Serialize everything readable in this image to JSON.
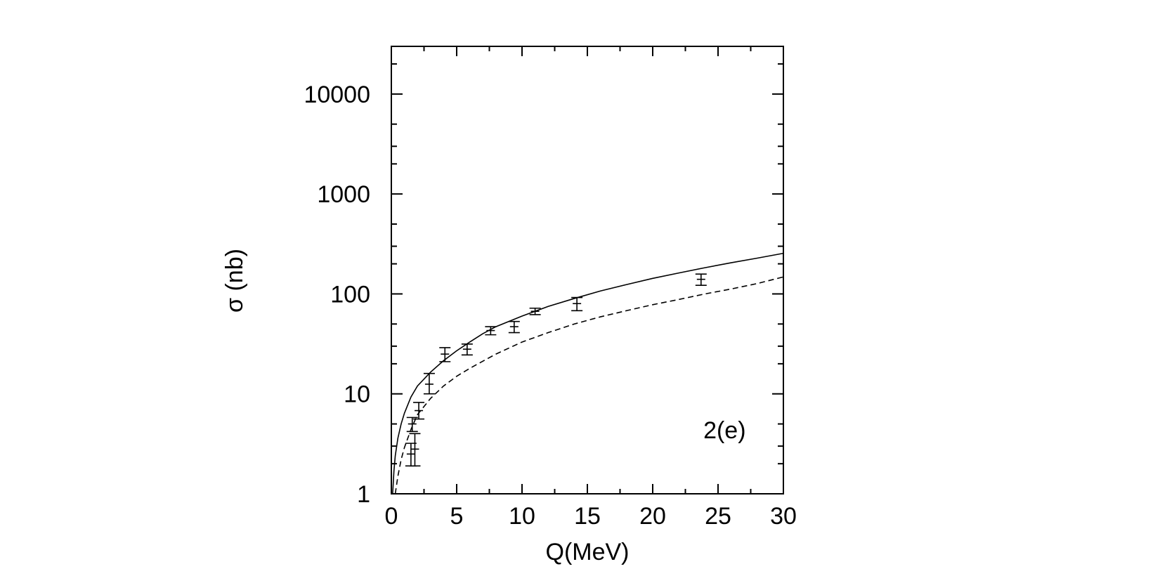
{
  "chart_data": {
    "type": "scatter",
    "title": "",
    "xlabel": "Q(MeV)",
    "ylabel": "σ (nb)",
    "annotation": "2(e)",
    "xlim": [
      0,
      30
    ],
    "ylim": [
      1,
      30000
    ],
    "yscale": "log",
    "grid": false,
    "legend": "none",
    "x_ticks": [
      0,
      5,
      10,
      15,
      20,
      25,
      30
    ],
    "x_tick_labels": [
      "0",
      "5",
      "10",
      "15",
      "20",
      "25",
      "30"
    ],
    "y_ticks": [
      1,
      10,
      100,
      1000,
      10000
    ],
    "y_tick_labels": [
      "1",
      "10",
      "100",
      "1000",
      "10000"
    ],
    "series": [
      {
        "style": "solid",
        "color": "#000000",
        "points": [
          [
            0.1,
            1.0
          ],
          [
            0.2,
            1.7
          ],
          [
            0.3,
            2.4
          ],
          [
            0.5,
            3.6
          ],
          [
            0.75,
            5.0
          ],
          [
            1.0,
            6.4
          ],
          [
            1.5,
            9.3
          ],
          [
            2.0,
            12.0
          ],
          [
            3.0,
            16.5
          ],
          [
            4.0,
            21.5
          ],
          [
            5.0,
            27.0
          ],
          [
            6.0,
            33.0
          ],
          [
            7.0,
            40.0
          ],
          [
            8.0,
            47.0
          ],
          [
            10.0,
            60.0
          ],
          [
            12.0,
            75.0
          ],
          [
            14.0,
            90.0
          ],
          [
            16.0,
            107.0
          ],
          [
            18.0,
            124.0
          ],
          [
            20.0,
            143.0
          ],
          [
            22.0,
            162.0
          ],
          [
            24.0,
            183.0
          ],
          [
            26.0,
            205.0
          ],
          [
            28.0,
            228.0
          ],
          [
            30.0,
            255.0
          ]
        ]
      },
      {
        "style": "dashed",
        "color": "#000000",
        "points": [
          [
            0.3,
            1.0
          ],
          [
            0.5,
            1.5
          ],
          [
            0.75,
            2.2
          ],
          [
            1.0,
            2.9
          ],
          [
            1.5,
            4.4
          ],
          [
            2.0,
            6.2
          ],
          [
            3.0,
            9.0
          ],
          [
            4.0,
            12.0
          ],
          [
            5.0,
            15.0
          ],
          [
            6.0,
            18.0
          ],
          [
            8.0,
            25.0
          ],
          [
            10.0,
            33.0
          ],
          [
            12.0,
            41.0
          ],
          [
            14.0,
            50.0
          ],
          [
            16.0,
            59.0
          ],
          [
            18.0,
            68.0
          ],
          [
            20.0,
            78.0
          ],
          [
            22.0,
            88.0
          ],
          [
            24.0,
            100.0
          ],
          [
            26.0,
            112.0
          ],
          [
            28.0,
            127.0
          ],
          [
            30.0,
            148.0
          ]
        ]
      },
      {
        "style": "errorbar",
        "color": "#000000",
        "points": [
          {
            "x": 1.5,
            "y": 2.5,
            "err_lo": 0.6,
            "err_hi": 0.7
          },
          {
            "x": 1.8,
            "y": 2.8,
            "err_lo": 0.9,
            "err_hi": 1.2
          },
          {
            "x": 1.6,
            "y": 5.0,
            "err_lo": 0.8,
            "err_hi": 0.8
          },
          {
            "x": 2.1,
            "y": 6.8,
            "err_lo": 1.2,
            "err_hi": 1.4
          },
          {
            "x": 2.9,
            "y": 12.5,
            "err_lo": 2.5,
            "err_hi": 3.5
          },
          {
            "x": 4.1,
            "y": 25.0,
            "err_lo": 4.0,
            "err_hi": 4.0
          },
          {
            "x": 5.8,
            "y": 28.0,
            "err_lo": 3.5,
            "err_hi": 3.5
          },
          {
            "x": 7.6,
            "y": 43.0,
            "err_lo": 4.0,
            "err_hi": 4.0
          },
          {
            "x": 9.4,
            "y": 47.0,
            "err_lo": 6.0,
            "err_hi": 6.0
          },
          {
            "x": 11.0,
            "y": 67.0,
            "err_lo": 5.0,
            "err_hi": 5.0
          },
          {
            "x": 14.2,
            "y": 80.0,
            "err_lo": 12.0,
            "err_hi": 12.0
          },
          {
            "x": 23.7,
            "y": 140.0,
            "err_lo": 18.0,
            "err_hi": 18.0
          }
        ]
      }
    ]
  }
}
